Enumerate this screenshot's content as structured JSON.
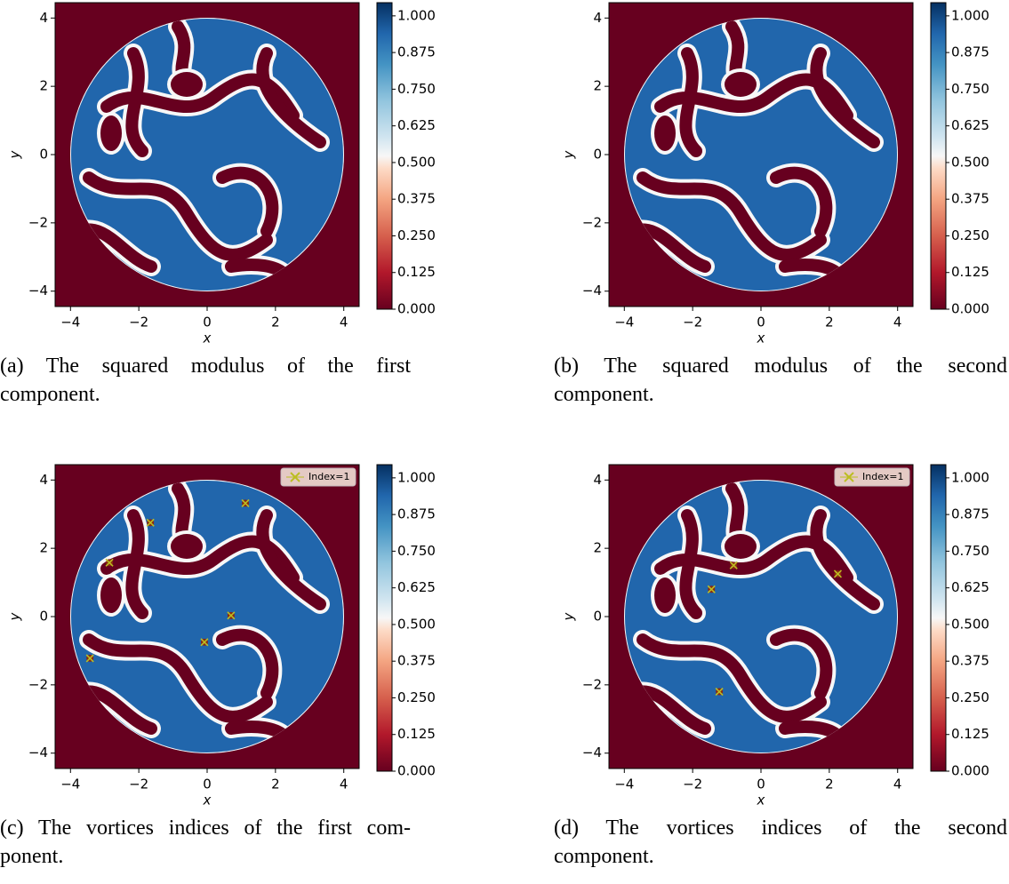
{
  "chart_data": [
    {
      "type": "heatmap",
      "xlabel": "x",
      "ylabel": "y",
      "xlim": [
        -4.45,
        4.45
      ],
      "ylim": [
        -4.45,
        4.45
      ],
      "xticks": [
        {
          "value": -4,
          "label": "−4"
        },
        {
          "value": -2,
          "label": "−2"
        },
        0,
        2,
        4
      ],
      "yticks": [
        {
          "value": -4,
          "label": "−4"
        },
        {
          "value": -2,
          "label": "−2"
        },
        0,
        2,
        4
      ],
      "clim": [
        0,
        1.045
      ],
      "cticks": [
        {
          "value": 0,
          "label": "0.000"
        },
        {
          "value": 0.125,
          "label": "0.125"
        },
        {
          "value": 0.25,
          "label": "0.250"
        },
        {
          "value": 0.375,
          "label": "0.375"
        },
        {
          "value": 0.5,
          "label": "0.500"
        },
        {
          "value": 0.625,
          "label": "0.625"
        },
        {
          "value": 0.75,
          "label": "0.750"
        },
        {
          "value": 0.875,
          "label": "0.875"
        },
        {
          "value": 1,
          "label": "1.000"
        }
      ],
      "caption": [
        "(a) The squared modulus of the first",
        "component."
      ]
    },
    {
      "type": "heatmap",
      "xlabel": "x",
      "ylabel": "y",
      "xlim": [
        -4.45,
        4.45
      ],
      "ylim": [
        -4.45,
        4.45
      ],
      "xticks": [
        {
          "value": -4,
          "label": "−4"
        },
        {
          "value": -2,
          "label": "−2"
        },
        0,
        2,
        4
      ],
      "yticks": [
        {
          "value": -4,
          "label": "−4"
        },
        {
          "value": -2,
          "label": "−2"
        },
        0,
        2,
        4
      ],
      "clim": [
        0,
        1.045
      ],
      "cticks": [
        {
          "value": 0,
          "label": "0.000"
        },
        {
          "value": 0.125,
          "label": "0.125"
        },
        {
          "value": 0.25,
          "label": "0.250"
        },
        {
          "value": 0.375,
          "label": "0.375"
        },
        {
          "value": 0.5,
          "label": "0.500"
        },
        {
          "value": 0.625,
          "label": "0.625"
        },
        {
          "value": 0.75,
          "label": "0.750"
        },
        {
          "value": 0.875,
          "label": "0.875"
        },
        {
          "value": 1,
          "label": "1.000"
        }
      ],
      "caption": [
        "(b) The squared modulus of the second",
        "component."
      ]
    },
    {
      "type": "heatmap",
      "xlabel": "x",
      "ylabel": "y",
      "xlim": [
        -4.45,
        4.45
      ],
      "ylim": [
        -4.45,
        4.45
      ],
      "xticks": [
        {
          "value": -4,
          "label": "−4"
        },
        {
          "value": -2,
          "label": "−2"
        },
        0,
        2,
        4
      ],
      "yticks": [
        {
          "value": -4,
          "label": "−4"
        },
        {
          "value": -2,
          "label": "−2"
        },
        0,
        2,
        4
      ],
      "clim": [
        0,
        1.045
      ],
      "cticks": [
        {
          "value": 0,
          "label": "0.000"
        },
        {
          "value": 0.125,
          "label": "0.125"
        },
        {
          "value": 0.25,
          "label": "0.250"
        },
        {
          "value": 0.375,
          "label": "0.375"
        },
        {
          "value": 0.5,
          "label": "0.500"
        },
        {
          "value": 0.625,
          "label": "0.625"
        },
        {
          "value": 0.75,
          "label": "0.750"
        },
        {
          "value": 0.875,
          "label": "0.875"
        },
        {
          "value": 1,
          "label": "1.000"
        }
      ],
      "series": [
        {
          "name": "Index=1",
          "color": "#bcbd22",
          "x": [
            1.12,
            -1.66,
            -2.86,
            0.7,
            -0.08,
            -3.43
          ],
          "y": [
            3.32,
            2.75,
            1.58,
            0.03,
            -0.75,
            -1.22
          ]
        }
      ],
      "caption": [
        "(c) The vortices indices of the first com-",
        "ponent."
      ]
    },
    {
      "type": "heatmap",
      "xlabel": "x",
      "ylabel": "y",
      "xlim": [
        -4.45,
        4.45
      ],
      "ylim": [
        -4.45,
        4.45
      ],
      "xticks": [
        {
          "value": -4,
          "label": "−4"
        },
        {
          "value": -2,
          "label": "−2"
        },
        0,
        2,
        4
      ],
      "yticks": [
        {
          "value": -4,
          "label": "−4"
        },
        {
          "value": -2,
          "label": "−2"
        },
        0,
        2,
        4
      ],
      "clim": [
        0,
        1.045
      ],
      "cticks": [
        {
          "value": 0,
          "label": "0.000"
        },
        {
          "value": 0.125,
          "label": "0.125"
        },
        {
          "value": 0.25,
          "label": "0.250"
        },
        {
          "value": 0.375,
          "label": "0.375"
        },
        {
          "value": 0.5,
          "label": "0.500"
        },
        {
          "value": 0.625,
          "label": "0.625"
        },
        {
          "value": 0.75,
          "label": "0.750"
        },
        {
          "value": 0.875,
          "label": "0.875"
        },
        {
          "value": 1,
          "label": "1.000"
        }
      ],
      "series": [
        {
          "name": "Index=1",
          "color": "#bcbd22",
          "x": [
            -1.45,
            -0.8,
            -1.22,
            2.25
          ],
          "y": [
            0.8,
            1.5,
            -2.2,
            1.25
          ]
        }
      ],
      "caption": [
        "(d) The vortices indices of the second",
        "component."
      ]
    }
  ]
}
